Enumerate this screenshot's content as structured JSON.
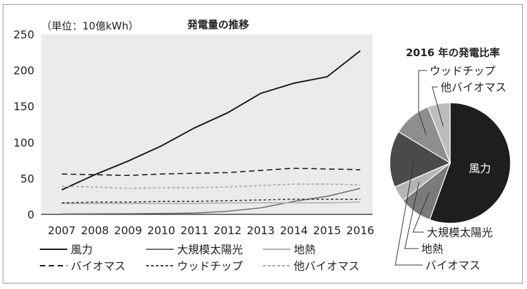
{
  "chart_data": [
    {
      "type": "line",
      "title": "発電量の推移",
      "unit_label": "（単位：10億kWh）",
      "x": [
        2007,
        2008,
        2009,
        2010,
        2011,
        2012,
        2013,
        2014,
        2015,
        2016
      ],
      "ylim": [
        0,
        250
      ],
      "yticks": [
        0,
        50,
        100,
        150,
        200,
        250
      ],
      "grid": false,
      "legend_position": "bottom",
      "series": [
        {
          "name": "風力",
          "color": "#1a1a1a",
          "dash": "solid",
          "values": [
            34,
            55,
            74,
            95,
            120,
            141,
            168,
            182,
            191,
            227
          ]
        },
        {
          "name": "大規模太陽光",
          "color": "#707070",
          "dash": "solid",
          "values": [
            0.6,
            0.8,
            0.9,
            1.2,
            1.8,
            4.3,
            9,
            18,
            25,
            36
          ]
        },
        {
          "name": "地熱",
          "color": "#b0b0b0",
          "dash": "solid",
          "values": [
            15,
            15,
            15,
            15,
            15,
            16,
            16,
            16,
            16,
            17
          ]
        },
        {
          "name": "バイオマス",
          "color": "#1a1a1a",
          "dash": "long",
          "values": [
            56,
            55,
            54,
            56,
            57,
            58,
            61,
            64,
            63,
            62
          ]
        },
        {
          "name": "ウッドチップ",
          "color": "#404040",
          "dash": "short",
          "values": [
            16,
            17,
            17,
            18,
            18,
            19,
            20,
            21,
            21,
            21
          ]
        },
        {
          "name": "他バイオマス",
          "color": "#a8a8a8",
          "dash": "short",
          "values": [
            39,
            38,
            36,
            37,
            37,
            38,
            40,
            42,
            42,
            41
          ]
        }
      ]
    },
    {
      "type": "pie",
      "title": "2016 年の発電比率",
      "slices": [
        {
          "name": "風力",
          "value": 55.5,
          "color": "#1e1e1e"
        },
        {
          "name": "大規模太陽光",
          "value": 8.8,
          "color": "#7a7a7a"
        },
        {
          "name": "地熱",
          "value": 4.2,
          "color": "#b5b5b5"
        },
        {
          "name": "バイオマス",
          "value": 15.2,
          "color": "#4a4a4a"
        },
        {
          "name": "ウッドチップ",
          "value": 10.3,
          "color": "#8e8e8e"
        },
        {
          "name": "他バイオマス",
          "value": 6.0,
          "color": "#bdbdbd"
        }
      ]
    }
  ]
}
